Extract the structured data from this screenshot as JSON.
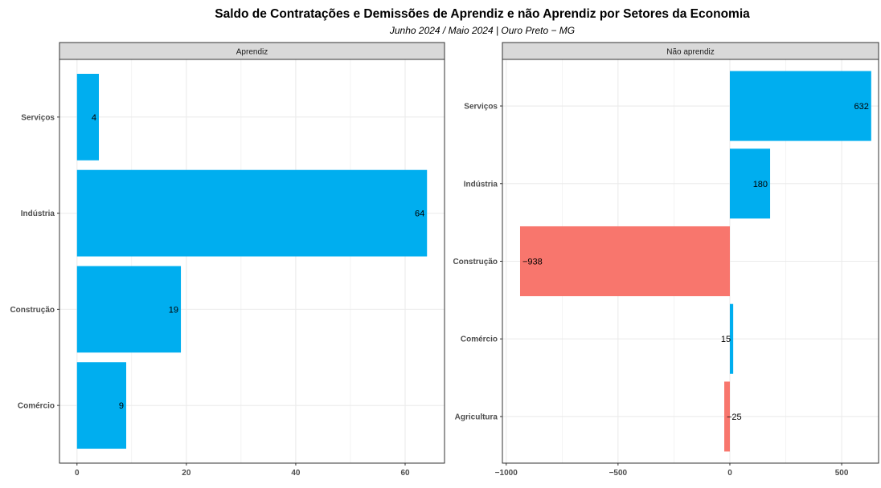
{
  "title": "Saldo de Contratações e Demissões de Aprendiz e não Aprendiz por Setores da Economia",
  "subtitle": "Junho 2024 / Maio 2024 | Ouro Preto − MG",
  "colors": {
    "positive": "#00AEEF",
    "negative": "#F8766D",
    "strip_fill": "#D9D9D9",
    "grid": "#EBEBEB",
    "panel_border": "#333333",
    "axis_text": "#4D4D4D"
  },
  "chart_data": [
    {
      "type": "bar",
      "orientation": "horizontal",
      "facet": "Aprendiz",
      "categories": [
        "Serviços",
        "Indústria",
        "Construção",
        "Comércio"
      ],
      "values": [
        4,
        64,
        19,
        9
      ],
      "xlim": [
        -3.2,
        67.2
      ],
      "xticks": [
        0,
        20,
        40,
        60
      ],
      "tick_labels": [
        "0",
        "20",
        "40",
        "60"
      ],
      "grid": true
    },
    {
      "type": "bar",
      "orientation": "horizontal",
      "facet": "Não aprendiz",
      "categories": [
        "Serviços",
        "Indústria",
        "Construção",
        "Comércio",
        "Agricultura"
      ],
      "values": [
        632,
        180,
        -938,
        15,
        -25
      ],
      "xlim": [
        -1017,
        665
      ],
      "xticks": [
        -1000,
        -500,
        0,
        500
      ],
      "tick_labels": [
        "−1000",
        "−500",
        "0",
        "500"
      ],
      "grid": true
    }
  ]
}
